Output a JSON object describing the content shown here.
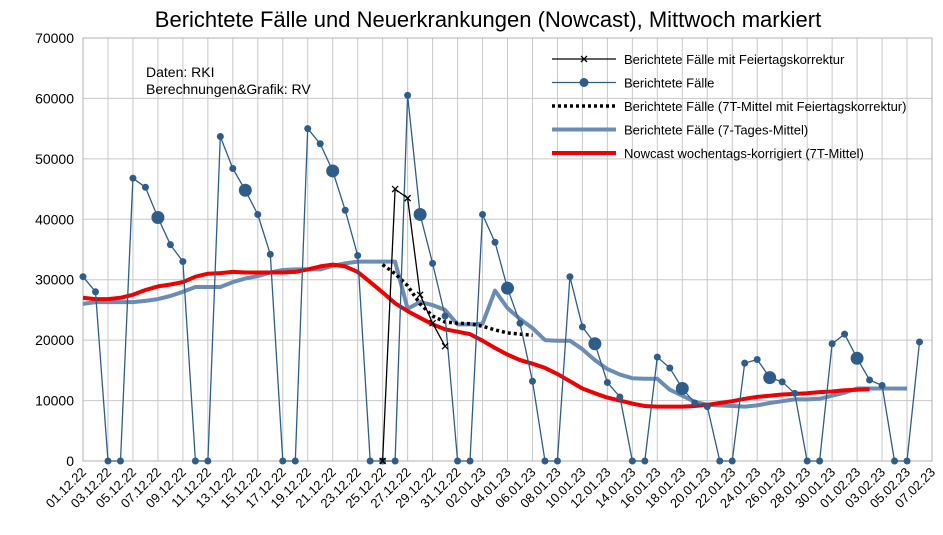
{
  "chart_data": {
    "type": "line",
    "title": "Berichtete Fälle und Neuerkrankungen (Nowcast), Mittwoch markiert",
    "annotation": [
      "Daten: RKI",
      "Berechnungen&Grafik: RV"
    ],
    "ylim": [
      0,
      70000
    ],
    "yticks": [
      0,
      10000,
      20000,
      30000,
      40000,
      50000,
      60000,
      70000
    ],
    "grid": true,
    "legend_position": "top-right",
    "xtick_labels": [
      "01.12.22",
      "03.12.22",
      "05.12.22",
      "07.12.22",
      "09.12.22",
      "11.12.22",
      "13.12.22",
      "15.12.22",
      "17.12.22",
      "19.12.22",
      "21.12.22",
      "23.12.22",
      "25.12.22",
      "27.12.22",
      "29.12.22",
      "31.12.22",
      "02.01.23",
      "04.01.23",
      "06.01.23",
      "08.01.23",
      "10.01.23",
      "12.01.23",
      "14.01.23",
      "16.01.23",
      "18.01.23",
      "20.01.23",
      "22.01.23",
      "24.01.23",
      "26.01.23",
      "28.01.23",
      "30.01.23",
      "01.02.23",
      "03.02.23",
      "05.02.23",
      "07.02.23"
    ],
    "days": 69,
    "series": [
      {
        "name": "Berichtete Fälle mit Feiertagskorrektur",
        "color": "#000000",
        "style": "line-x",
        "start_index": 24,
        "values": [
          0,
          45000,
          43500,
          27500,
          22800,
          19000
        ]
      },
      {
        "name": "Berichtete Fälle",
        "color": "#2f5d8a",
        "style": "line-dot",
        "wednesday_highlight": true,
        "start_index": 0,
        "values": [
          30500,
          28000,
          0,
          0,
          46800,
          45300,
          40300,
          35800,
          33000,
          0,
          0,
          53700,
          48400,
          44800,
          40800,
          34200,
          0,
          0,
          55000,
          52500,
          48000,
          41500,
          34000,
          0,
          0,
          0,
          60500,
          40800,
          32700,
          24000,
          0,
          0,
          40800,
          36200,
          28600,
          22800,
          13200,
          0,
          0,
          30500,
          22200,
          19400,
          13000,
          10600,
          0,
          0,
          17200,
          15400,
          12000,
          9600,
          9000,
          0,
          0,
          16200,
          16800,
          13800,
          13100,
          11200,
          0,
          0,
          19400,
          21000,
          17000,
          13400,
          12500,
          0,
          0,
          19700
        ]
      },
      {
        "name": "Berichtete Fälle (7T-Mittel mit Feiertagskorrektur)",
        "color": "#000000",
        "style": "dotted",
        "start_index": 24,
        "values": [
          32500,
          31000,
          29000,
          26000,
          24000,
          23000,
          22800,
          22700,
          22300,
          21700,
          21200,
          21000,
          20800
        ]
      },
      {
        "name": "Berichtete Fälle (7-Tages-Mittel)",
        "color": "#6b8cb4",
        "style": "thick",
        "start_index": 0,
        "values": [
          26000,
          26300,
          26300,
          26300,
          26300,
          26500,
          26800,
          27300,
          28000,
          28800,
          28800,
          28800,
          29600,
          30200,
          30600,
          31200,
          31600,
          31700,
          31700,
          31700,
          32300,
          32700,
          33000,
          33000,
          33000,
          33000,
          25200,
          26300,
          25800,
          25000,
          22600,
          22600,
          22700,
          28200,
          25300,
          23500,
          22000,
          20000,
          19900,
          19900,
          18500,
          16700,
          15200,
          14300,
          13700,
          13600,
          13600,
          11800,
          10800,
          9800,
          9300,
          9200,
          9100,
          9000,
          9200,
          9600,
          9900,
          10200,
          10200,
          10300,
          10800,
          11300,
          12000,
          12000,
          12000,
          12000,
          12000
        ]
      },
      {
        "name": "Nowcast wochentags-korrigiert (7T-Mittel)",
        "color": "#ee0000",
        "style": "thick",
        "start_index": 0,
        "values": [
          27000,
          26800,
          26800,
          27000,
          27500,
          28300,
          28900,
          29200,
          29600,
          30500,
          31000,
          31100,
          31300,
          31200,
          31200,
          31200,
          31200,
          31300,
          31700,
          32200,
          32500,
          32200,
          31300,
          29600,
          27900,
          26100,
          24800,
          23700,
          22600,
          21800,
          21400,
          21000,
          19900,
          18700,
          17600,
          16700,
          16100,
          15400,
          14400,
          13200,
          12000,
          11200,
          10500,
          10000,
          9500,
          9100,
          9000,
          9000,
          9000,
          9100,
          9300,
          9600,
          9900,
          10300,
          10600,
          10800,
          11000,
          11100,
          11200,
          11400,
          11500,
          11700,
          11800,
          11900
        ]
      }
    ],
    "wednesday_indices": [
      6,
      13,
      20,
      27,
      34,
      41,
      48,
      55,
      62
    ]
  }
}
